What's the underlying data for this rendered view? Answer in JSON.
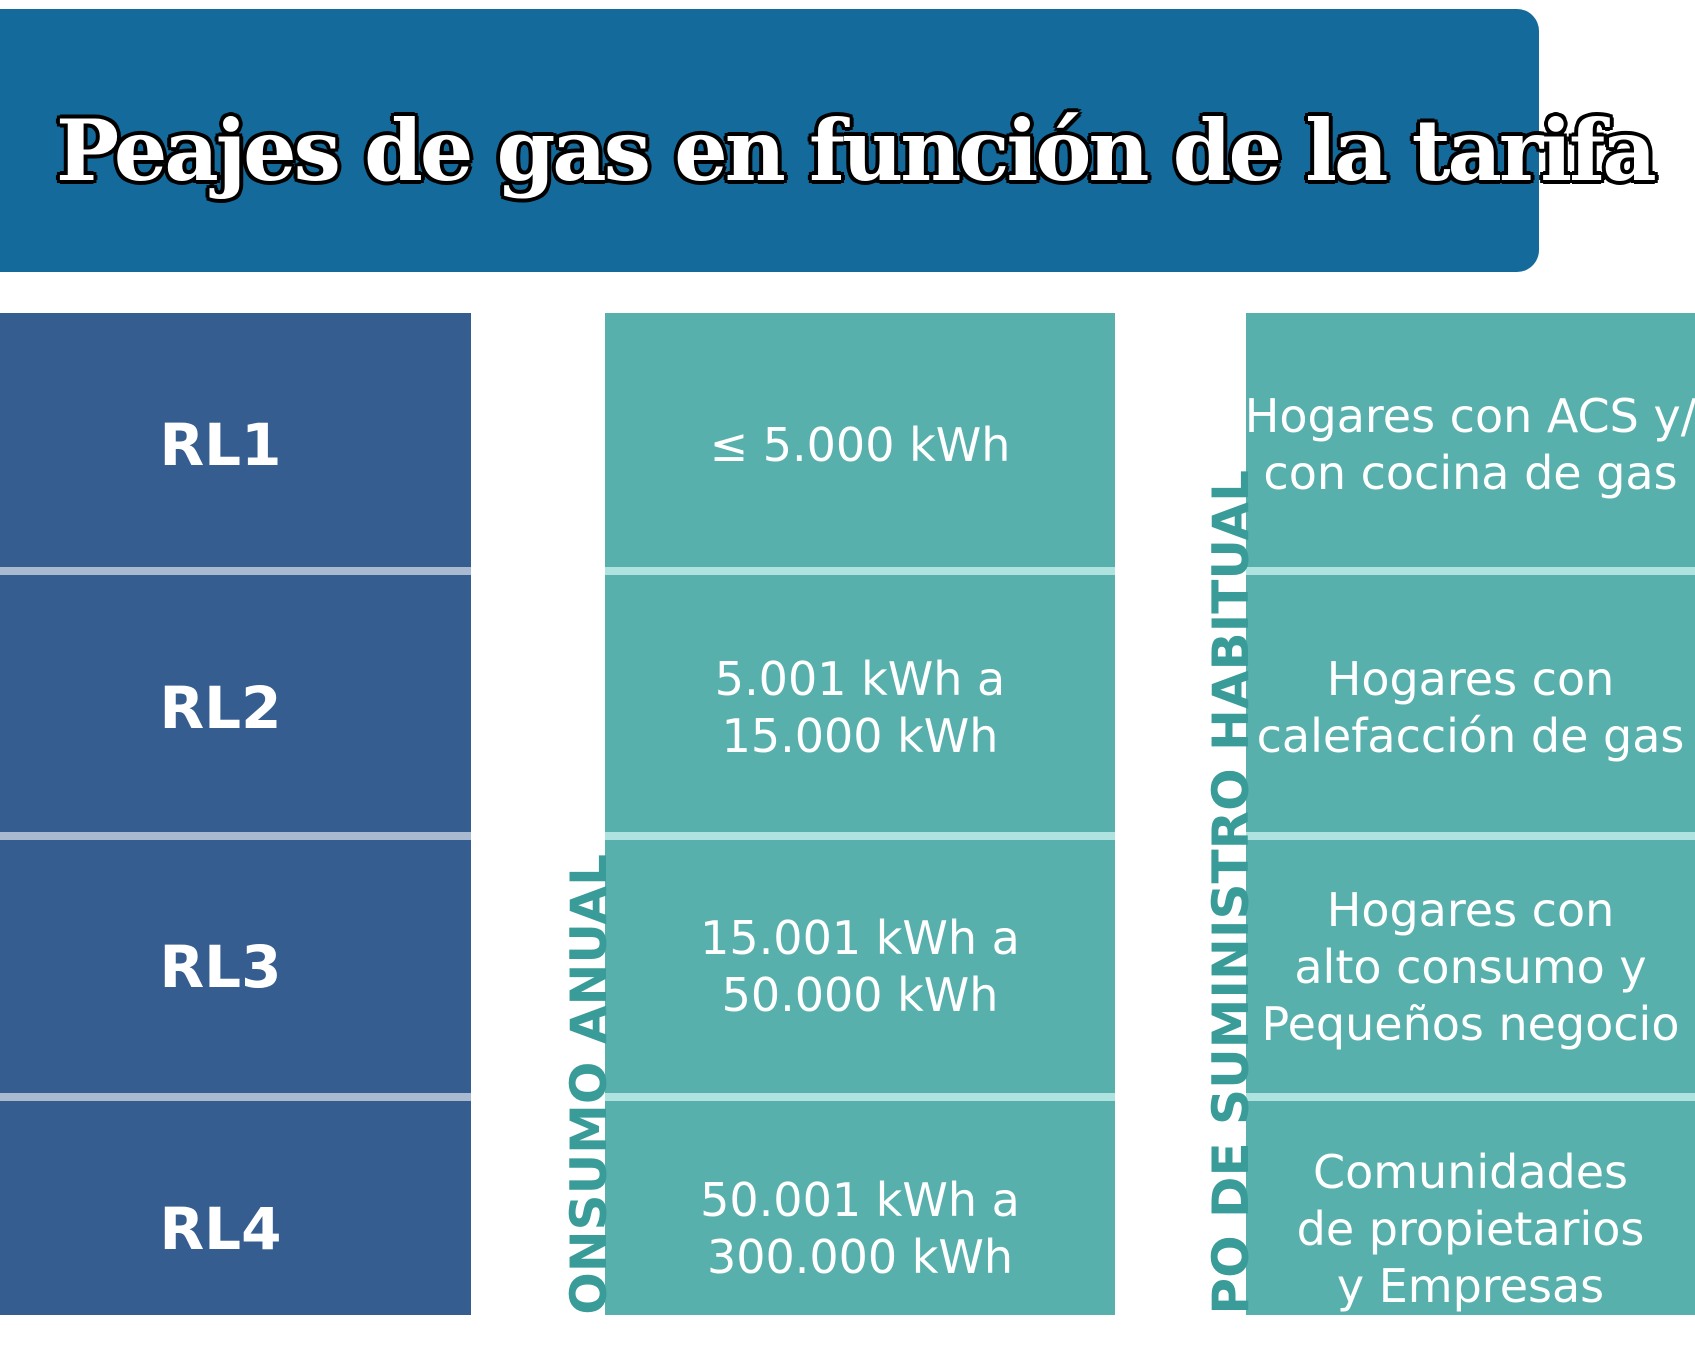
{
  "header": {
    "title": "Peajes de gas en función de la tarifa"
  },
  "labels": {
    "consumo": "ONSUMO ANUAL",
    "tipo": "PO DE SUMINISTRO HABITUAL"
  },
  "rows": [
    {
      "tarifa": "RL1",
      "consumo": [
        "≤ 5.000 kWh"
      ],
      "tipo": [
        "Hogares con ACS y/",
        "con cocina de gas"
      ]
    },
    {
      "tarifa": "RL2",
      "consumo": [
        "5.001 kWh a",
        "15.000 kWh"
      ],
      "tipo": [
        "Hogares con",
        "calefacción de gas"
      ]
    },
    {
      "tarifa": "RL3",
      "consumo": [
        "15.001 kWh a",
        "50.000 kWh"
      ],
      "tipo": [
        "Hogares con",
        "alto consumo y",
        "Pequeños negocio"
      ]
    },
    {
      "tarifa": "RL4",
      "consumo": [
        "50.001 kWh a",
        "300.000 kWh"
      ],
      "tipo": [
        "Comunidades",
        "de propietarios",
        "y Empresas"
      ]
    }
  ]
}
